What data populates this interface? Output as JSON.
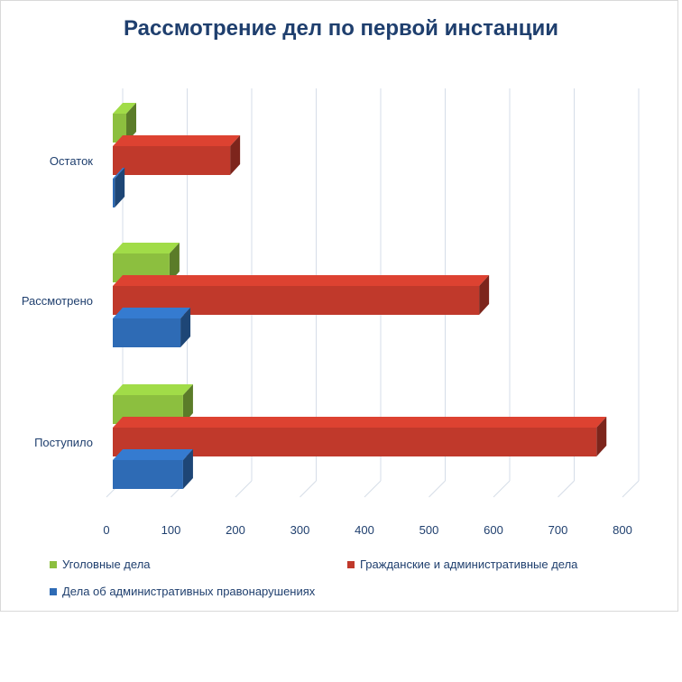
{
  "chart_data": {
    "type": "bar",
    "orientation": "horizontal",
    "title": "Рассмотрение дел по первой инстанции",
    "categories": [
      "Поступило",
      "Рассмотрено",
      "Остаток"
    ],
    "series": [
      {
        "name": "Уголовные дела",
        "color": "#8cbf3f",
        "values": [
          109,
          88,
          21
        ]
      },
      {
        "name": "Гражданские и административные дела",
        "color": "#c0392b",
        "values": [
          750,
          568,
          182
        ]
      },
      {
        "name": "Дела об административных правонарушениях",
        "color": "#2e6bb5",
        "values": [
          109,
          105,
          3
        ]
      }
    ],
    "xlim": [
      0,
      800
    ],
    "xticks": [
      "0",
      "100",
      "200",
      "300",
      "400",
      "500",
      "600",
      "700",
      "800"
    ],
    "grid": true,
    "legend": "bottom"
  }
}
